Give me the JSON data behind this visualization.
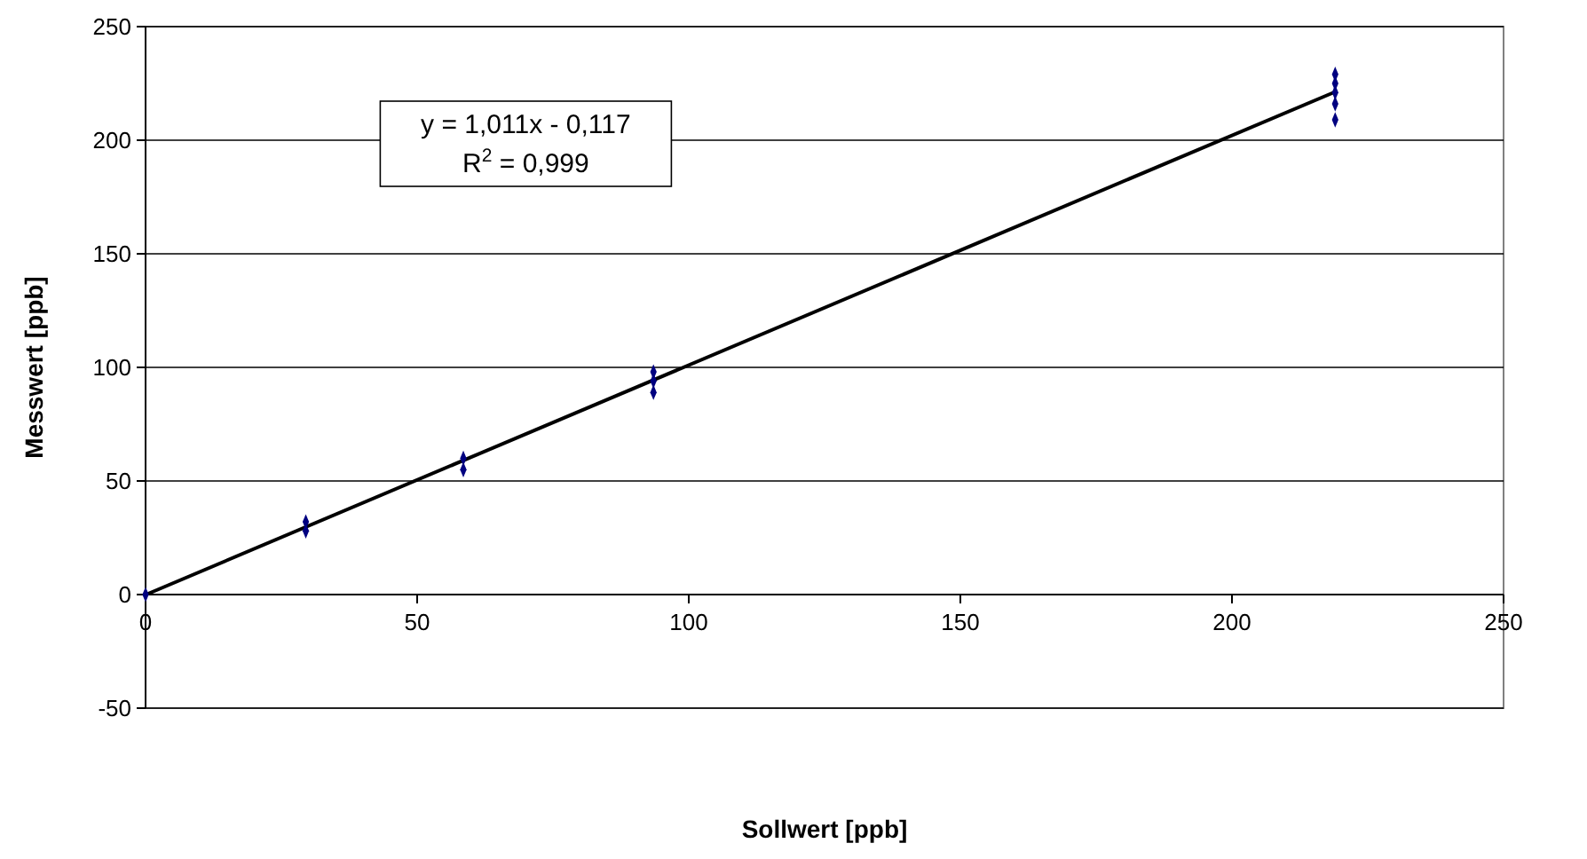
{
  "chart_data": {
    "type": "scatter",
    "xlabel": "Sollwert [ppb]",
    "ylabel": "Messwert [ppb]",
    "xlim": [
      0,
      250
    ],
    "xticks": [
      0,
      50,
      100,
      150,
      200,
      250
    ],
    "ylim": [
      -50,
      250
    ],
    "yticks": [
      -50,
      0,
      50,
      100,
      150,
      200,
      250
    ],
    "grid": "y",
    "marker": "diamond",
    "annotations": [
      "y = 1,011x - 0,117",
      "R$^{2}$ = 0,999"
    ],
    "series": [
      {
        "color": "#000080",
        "x": [
          0,
          29.5,
          29.5,
          58.5,
          58.5,
          93.5,
          93.5,
          93.5,
          219,
          219,
          219,
          219,
          219
        ],
        "values": [
          0,
          28,
          32,
          55,
          60,
          89,
          94,
          98,
          209,
          216,
          221,
          225,
          229
        ]
      },
      {
        "type": "line",
        "color": "#000000",
        "line_style": "solid",
        "marker": "none",
        "x": [
          0,
          219
        ],
        "values": [
          -0.1,
          221.3
        ]
      }
    ]
  }
}
